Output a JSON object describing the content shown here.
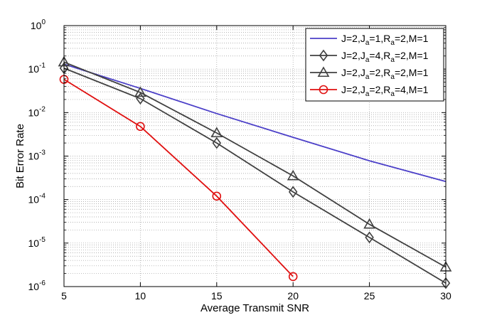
{
  "chart_data": {
    "type": "line",
    "xlabel": "Average Transmit SNR",
    "ylabel": "Bit Error Rate",
    "xlim": [
      5,
      30
    ],
    "ylim": [
      1e-06,
      1
    ],
    "yscale": "log",
    "grid": true,
    "legend_position": "top-right",
    "x_ticks": [
      5,
      10,
      15,
      20,
      25,
      30
    ],
    "x_tick_labels": [
      "5",
      "10",
      "15",
      "20",
      "25",
      "30"
    ],
    "y_ticks": [
      {
        "exp": 0,
        "base": "10",
        "power": "0"
      },
      {
        "exp": -1,
        "base": "10",
        "power": "-1"
      },
      {
        "exp": -2,
        "base": "10",
        "power": "-2"
      },
      {
        "exp": -3,
        "base": "10",
        "power": "-3"
      },
      {
        "exp": -4,
        "base": "10",
        "power": "-4"
      },
      {
        "exp": -5,
        "base": "10",
        "power": "-5"
      },
      {
        "exp": -6,
        "base": "10",
        "power": "-6"
      }
    ],
    "series": [
      {
        "name": "J=2,Ja=1,Ra=2,M=1",
        "legend_parts": [
          "J=2,J",
          "a",
          "=1,R",
          "a",
          "=2,M=1"
        ],
        "color": "#4b3fc8",
        "marker": "none",
        "x": [
          5,
          10,
          15,
          20,
          25,
          30
        ],
        "values": [
          0.13,
          0.036,
          0.0095,
          0.0027,
          0.00078,
          0.00026
        ]
      },
      {
        "name": "J=2,Ja=4,Ra=2,M=1",
        "legend_parts": [
          "J=2,J",
          "a",
          "=4,R",
          "a",
          "=2,M=1"
        ],
        "color": "#404040",
        "marker": "diamond",
        "x": [
          5,
          10,
          15,
          20,
          25,
          30
        ],
        "values": [
          0.105,
          0.021,
          0.002,
          0.00015,
          1.35e-05,
          1.2e-06
        ]
      },
      {
        "name": "J=2,Ja=2,Ra=2,M=1",
        "legend_parts": [
          "J=2,J",
          "a",
          "=2,R",
          "a",
          "=2,M=1"
        ],
        "color": "#404040",
        "marker": "triangle",
        "x": [
          5,
          10,
          15,
          20,
          25,
          30
        ],
        "values": [
          0.145,
          0.029,
          0.0034,
          0.00035,
          2.7e-05,
          2.8e-06
        ]
      },
      {
        "name": "J=2,Ja=2,Ra=4,M=1",
        "legend_parts": [
          "J=2,J",
          "a",
          "=2,R",
          "a",
          "=4,M=1"
        ],
        "color": "#e01010",
        "marker": "circle",
        "x": [
          5,
          10,
          15,
          20
        ],
        "values": [
          0.058,
          0.0048,
          0.00012,
          1.7e-06
        ]
      }
    ]
  }
}
